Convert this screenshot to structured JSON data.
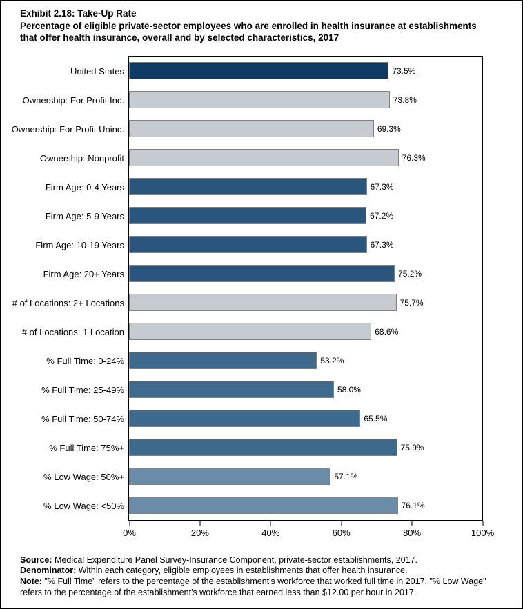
{
  "header": {
    "title": "Exhibit 2.18: Take-Up Rate",
    "subtitle": "Percentage of eligible private-sector employees who are enrolled in health insurance at establishments that offer health insurance, overall and by selected characteristics, 2017"
  },
  "chart_data": {
    "type": "bar",
    "orientation": "horizontal",
    "categories": [
      "United States",
      "Ownership: For Profit Inc.",
      "Ownership: For Profit Uninc.",
      "Ownership: Nonprofit",
      "Firm Age: 0-4 Years",
      "Firm Age: 5-9 Years",
      "Firm Age: 10-19 Years",
      "Firm Age: 20+ Years",
      "# of Locations: 2+ Locations",
      "# of Locations: 1 Location",
      "% Full Time: 0-24%",
      "% Full Time: 25-49%",
      "% Full Time: 50-74%",
      "% Full Time: 75%+",
      "% Low Wage: 50%+",
      "% Low Wage: <50%"
    ],
    "values": [
      73.5,
      73.8,
      69.3,
      76.3,
      67.3,
      67.2,
      67.3,
      75.2,
      75.7,
      68.6,
      53.2,
      58.0,
      65.5,
      75.9,
      57.1,
      76.1
    ],
    "value_labels": [
      "73.5%",
      "73.8%",
      "69.3%",
      "76.3%",
      "67.3%",
      "67.2%",
      "67.3%",
      "75.2%",
      "75.7%",
      "68.6%",
      "53.2%",
      "58.0%",
      "65.5%",
      "75.9%",
      "57.1%",
      "76.1%"
    ],
    "bar_colors": [
      "#0e3a63",
      "#c6cbd1",
      "#c6cbd1",
      "#c6cbd1",
      "#2a567e",
      "#2a567e",
      "#2a567e",
      "#2a567e",
      "#c6cbd1",
      "#c6cbd1",
      "#3e6a8e",
      "#3e6a8e",
      "#3e6a8e",
      "#3e6a8e",
      "#6b8ca8",
      "#6b8ca8"
    ],
    "bar_border_color": "#808080",
    "xlim": [
      0,
      100
    ],
    "x_ticks": [
      "0%",
      "20%",
      "40%",
      "60%",
      "80%",
      "100%"
    ],
    "grid": false,
    "legend": "none"
  },
  "color_legend": {
    "united_states": "#0e3a63",
    "gray_group": "#c6cbd1",
    "firm_age_group": "#2a567e",
    "full_time_group": "#3e6a8e",
    "low_wage_group": "#6b8ca8"
  },
  "footnotes": [
    {
      "label": "Source:",
      "text": " Medical Expenditure Panel Survey-Insurance Component, private-sector establishments, 2017."
    },
    {
      "label": "Denominator:",
      "text": " Within each category, eligible employees in establishments that offer health insurance."
    },
    {
      "label": "Note:",
      "text": " \"% Full Time\" refers to the percentage of the establishment's workforce that worked full time in 2017. \"% Low Wage\" refers to the percentage of the establishment's workforce that earned less than $12.00 per hour in 2017."
    }
  ]
}
